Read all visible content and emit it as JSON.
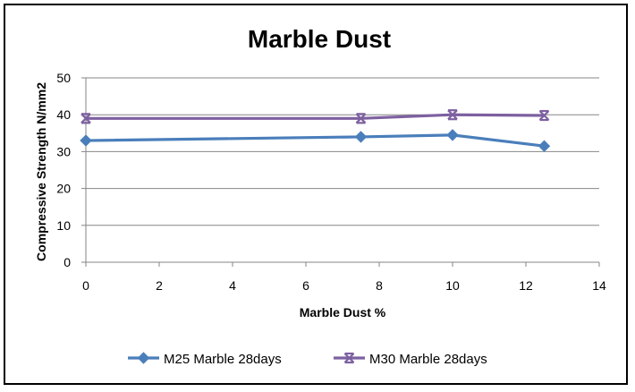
{
  "chart_data": {
    "type": "line",
    "title": "Marble Dust",
    "xlabel": "Marble Dust %",
    "ylabel": "Compressive Strength  N/mm2",
    "xlim": [
      0,
      14
    ],
    "ylim": [
      0,
      50
    ],
    "x_ticks": [
      "0",
      "2",
      "4",
      "6",
      "8",
      "10",
      "12",
      "14"
    ],
    "y_ticks": [
      "0",
      "10",
      "20",
      "30",
      "40",
      "50"
    ],
    "grid": "horizontal",
    "legend_position": "bottom",
    "series": [
      {
        "name": "M25 Marble 28days",
        "color": "#4a7ebb",
        "marker": "diamond-icon",
        "x": [
          0,
          7.5,
          10,
          12.5
        ],
        "values": [
          33,
          34,
          34.5,
          31.5
        ]
      },
      {
        "name": "M30 Marble 28days",
        "color": "#7d60a0",
        "marker": "star-x-icon",
        "x": [
          0,
          7.5,
          10,
          12.5
        ],
        "values": [
          39,
          39,
          40,
          39.8
        ]
      }
    ]
  }
}
